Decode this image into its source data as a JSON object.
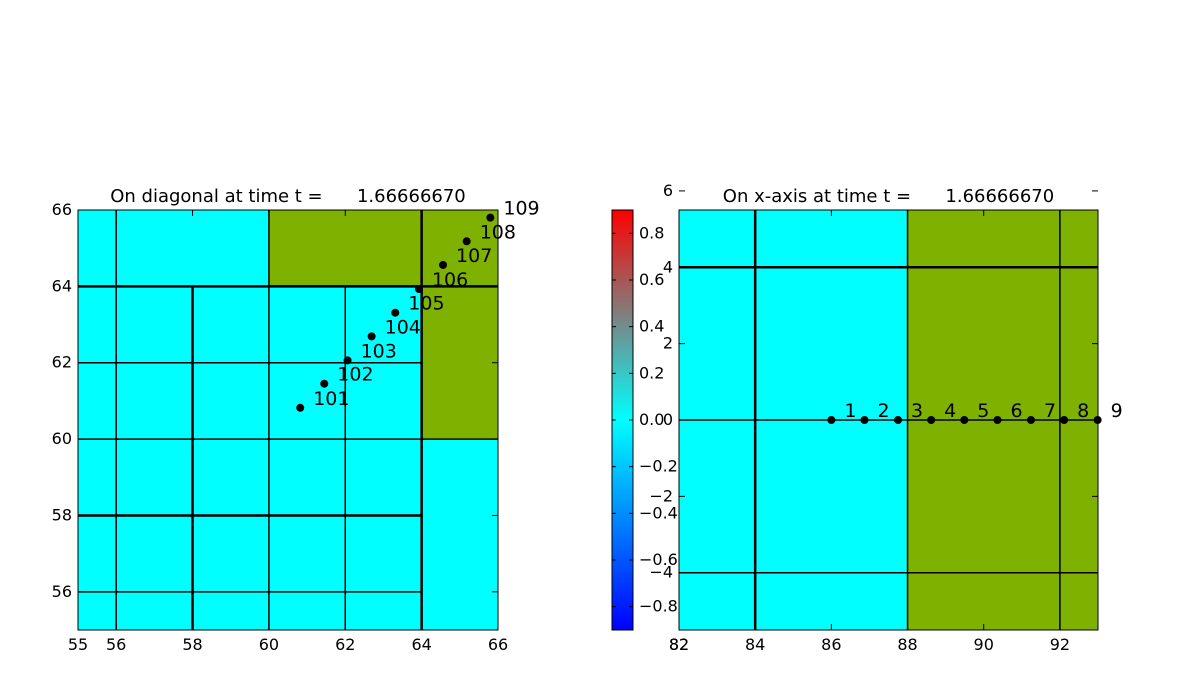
{
  "chart_data": [
    {
      "type": "scatter",
      "title": "On diagonal at time t =      1.66666670",
      "xlim": [
        55,
        66
      ],
      "ylim": [
        55,
        66
      ],
      "xticks": [
        "56",
        "58",
        "60",
        "62",
        "64",
        "66"
      ],
      "yticks": [
        "56",
        "58",
        "60",
        "62",
        "64",
        "66"
      ],
      "colors": {
        "fine": "#00ffff",
        "coarse": "#7fb200"
      },
      "regions": [
        {
          "x0": 55,
          "x1": 60,
          "y0": 64,
          "y1": 66,
          "color": "fine"
        },
        {
          "x0": 60,
          "x1": 64,
          "y0": 64,
          "y1": 66,
          "color": "coarse"
        },
        {
          "x0": 64,
          "x1": 66,
          "y0": 64,
          "y1": 66,
          "color": "coarse"
        },
        {
          "x0": 64,
          "x1": 66,
          "y0": 60,
          "y1": 64,
          "color": "coarse"
        },
        {
          "x0": 55,
          "x1": 64,
          "y0": 55,
          "y1": 64,
          "color": "fine"
        },
        {
          "x0": 64,
          "x1": 66,
          "y0": 55,
          "y1": 60,
          "color": "fine"
        }
      ],
      "grid_lines": {
        "vertical": [
          {
            "x": 56,
            "y0": 55,
            "y1": 66,
            "w": 1.5
          },
          {
            "x": 58,
            "y0": 55,
            "y1": 64,
            "w": 2.5
          },
          {
            "x": 60,
            "y0": 55,
            "y1": 66,
            "w": 1.5
          },
          {
            "x": 62,
            "y0": 55,
            "y1": 64,
            "w": 1.5
          },
          {
            "x": 64,
            "y0": 55,
            "y1": 66,
            "w": 2.5
          }
        ],
        "horizontal": [
          {
            "y": 56,
            "x0": 55,
            "x1": 64,
            "w": 1.5
          },
          {
            "y": 58,
            "x0": 55,
            "x1": 64,
            "w": 2.5
          },
          {
            "y": 60,
            "x0": 55,
            "x1": 66,
            "w": 1.5
          },
          {
            "y": 62,
            "x0": 55,
            "x1": 64,
            "w": 1.5
          },
          {
            "y": 64,
            "x0": 55,
            "x1": 66,
            "w": 2.5
          }
        ]
      },
      "points": [
        {
          "label": "101",
          "x": 60.82,
          "y": 60.82
        },
        {
          "label": "102",
          "x": 61.45,
          "y": 61.45
        },
        {
          "label": "103",
          "x": 62.06,
          "y": 62.06
        },
        {
          "label": "104",
          "x": 62.69,
          "y": 62.69
        },
        {
          "label": "105",
          "x": 63.31,
          "y": 63.31
        },
        {
          "label": "106",
          "x": 63.93,
          "y": 63.93
        },
        {
          "label": "107",
          "x": 64.56,
          "y": 64.56
        },
        {
          "label": "108",
          "x": 65.18,
          "y": 65.18
        },
        {
          "label": "109",
          "x": 65.8,
          "y": 65.8
        }
      ]
    },
    {
      "type": "scatter",
      "title": "On x-axis at time t =      1.66666670",
      "xlim": [
        82,
        93
      ],
      "ylim": [
        -5.5,
        5.5
      ],
      "xticks": [
        "82",
        "84",
        "86",
        "88",
        "90",
        "92"
      ],
      "yticks": [
        "−4",
        "−2",
        "0",
        "2",
        "4",
        "6"
      ],
      "colors": {
        "fine": "#00ffff",
        "coarse": "#7fb200"
      },
      "regions": [
        {
          "x0": 82,
          "x1": 88,
          "y0": -5.5,
          "y1": 5.5,
          "color": "fine"
        },
        {
          "x0": 88,
          "x1": 93,
          "y0": -5.5,
          "y1": 5.5,
          "color": "coarse"
        }
      ],
      "grid_lines": {
        "vertical": [
          {
            "x": 84,
            "y0": -5.5,
            "y1": 5.5,
            "w": 2.5
          },
          {
            "x": 88,
            "y0": -5.5,
            "y1": 5.5,
            "w": 1.5
          },
          {
            "x": 92,
            "y0": -5.5,
            "y1": 5.5,
            "w": 1.5
          }
        ],
        "horizontal": [
          {
            "y": 4,
            "x0": 82,
            "x1": 93,
            "w": 2.5
          },
          {
            "y": 0,
            "x0": 82,
            "x1": 93,
            "w": 1.5
          },
          {
            "y": -4,
            "x0": 82,
            "x1": 93,
            "w": 1.5
          }
        ]
      },
      "points": [
        {
          "label": "1",
          "x": 86.0,
          "y": 0
        },
        {
          "label": "2",
          "x": 86.87,
          "y": 0
        },
        {
          "label": "3",
          "x": 87.75,
          "y": 0
        },
        {
          "label": "4",
          "x": 88.62,
          "y": 0
        },
        {
          "label": "5",
          "x": 89.49,
          "y": 0
        },
        {
          "label": "6",
          "x": 90.36,
          "y": 0
        },
        {
          "label": "7",
          "x": 91.24,
          "y": 0
        },
        {
          "label": "8",
          "x": 92.11,
          "y": 0
        },
        {
          "label": "9",
          "x": 92.99,
          "y": 0
        }
      ]
    }
  ],
  "colorbar": {
    "range": [
      -0.9,
      0.9
    ],
    "ticks": [
      "−0.8",
      "−0.6",
      "−0.4",
      "−0.2",
      "0.0",
      "0.2",
      "0.4",
      "0.6",
      "0.8"
    ],
    "colors": [
      "#0000ff",
      "#00ffff",
      "#ff0000"
    ]
  }
}
